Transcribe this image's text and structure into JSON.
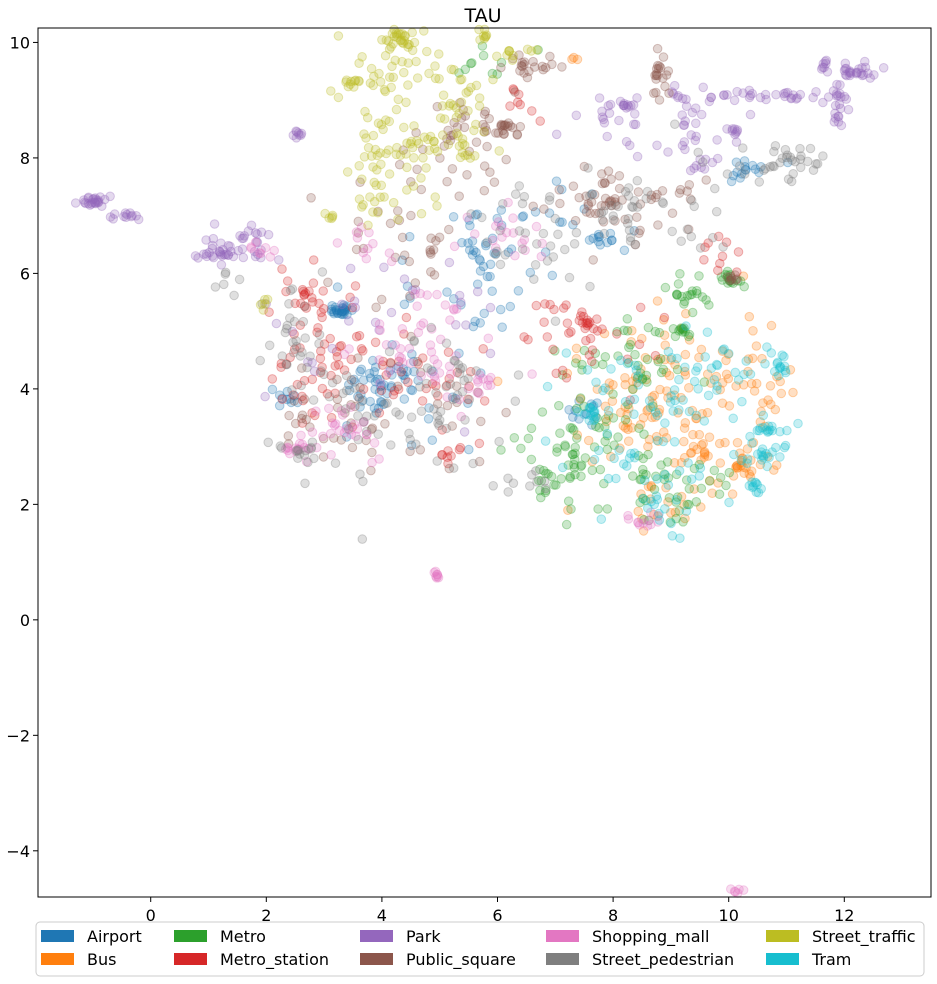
{
  "chart_data": {
    "type": "scatter",
    "title": "TAU",
    "xlabel": "",
    "ylabel": "",
    "xlim": [
      -1.95,
      13.5
    ],
    "ylim": [
      -4.8,
      10.25
    ],
    "xticks": [
      0,
      2,
      4,
      6,
      8,
      10,
      12
    ],
    "yticks": [
      -4,
      -2,
      0,
      2,
      4,
      6,
      8,
      10
    ],
    "xtick_labels": [
      "0",
      "2",
      "4",
      "6",
      "8",
      "10",
      "12"
    ],
    "ytick_labels": [
      "−4",
      "−2",
      "0",
      "2",
      "4",
      "6",
      "8",
      "10"
    ],
    "grid": false,
    "legend_position": "bottom",
    "marker_alpha": 0.25,
    "series": [
      {
        "name": "Airport",
        "color": "#1f77b4",
        "clusters": [
          {
            "cx": 3.3,
            "cy": 5.35,
            "sx": 0.08,
            "sy": 0.07,
            "n": 25
          },
          {
            "cx": 3.9,
            "cy": 3.9,
            "sx": 0.45,
            "sy": 0.35,
            "n": 40
          },
          {
            "cx": 5.8,
            "cy": 6.0,
            "sx": 0.35,
            "sy": 0.5,
            "n": 30
          },
          {
            "cx": 6.8,
            "cy": 6.8,
            "sx": 0.6,
            "sy": 0.4,
            "n": 25
          },
          {
            "cx": 7.8,
            "cy": 6.6,
            "sx": 0.15,
            "sy": 0.08,
            "n": 10
          },
          {
            "cx": 10.5,
            "cy": 7.8,
            "sx": 0.25,
            "sy": 0.1,
            "n": 15
          },
          {
            "cx": 4.5,
            "cy": 4.5,
            "sx": 0.9,
            "sy": 0.8,
            "n": 35
          },
          {
            "cx": 2.4,
            "cy": 3.8,
            "sx": 0.1,
            "sy": 0.1,
            "n": 10
          },
          {
            "cx": 7.5,
            "cy": 3.6,
            "sx": 0.15,
            "sy": 0.12,
            "n": 12
          }
        ]
      },
      {
        "name": "Bus",
        "color": "#ff7f0e",
        "clusters": [
          {
            "cx": 8.4,
            "cy": 3.4,
            "sx": 0.6,
            "sy": 0.5,
            "n": 60
          },
          {
            "cx": 9.8,
            "cy": 3.1,
            "sx": 0.5,
            "sy": 0.5,
            "n": 50
          },
          {
            "cx": 10.2,
            "cy": 2.7,
            "sx": 0.1,
            "sy": 0.15,
            "n": 15
          },
          {
            "cx": 8.9,
            "cy": 4.7,
            "sx": 0.4,
            "sy": 0.4,
            "n": 30
          },
          {
            "cx": 10.4,
            "cy": 4.3,
            "sx": 0.4,
            "sy": 0.5,
            "n": 25
          },
          {
            "cx": 8.9,
            "cy": 2.0,
            "sx": 0.3,
            "sy": 0.3,
            "n": 20
          },
          {
            "cx": 7.3,
            "cy": 9.7,
            "sx": 0.05,
            "sy": 0.03,
            "n": 3
          }
        ]
      },
      {
        "name": "Metro",
        "color": "#2ca02c",
        "clusters": [
          {
            "cx": 7.6,
            "cy": 2.9,
            "sx": 0.6,
            "sy": 0.5,
            "n": 60
          },
          {
            "cx": 9.0,
            "cy": 2.3,
            "sx": 0.5,
            "sy": 0.35,
            "n": 40
          },
          {
            "cx": 10.0,
            "cy": 5.9,
            "sx": 0.1,
            "sy": 0.07,
            "n": 15
          },
          {
            "cx": 9.2,
            "cy": 5.0,
            "sx": 0.1,
            "sy": 0.06,
            "n": 12
          },
          {
            "cx": 8.3,
            "cy": 4.5,
            "sx": 0.6,
            "sy": 0.4,
            "n": 40
          },
          {
            "cx": 9.2,
            "cy": 5.7,
            "sx": 0.3,
            "sy": 0.2,
            "n": 20
          },
          {
            "cx": 6.9,
            "cy": 2.4,
            "sx": 0.2,
            "sy": 0.2,
            "n": 15
          },
          {
            "cx": 6.0,
            "cy": 9.6,
            "sx": 0.3,
            "sy": 0.2,
            "n": 10
          }
        ]
      },
      {
        "name": "Metro_station",
        "color": "#d62728",
        "clusters": [
          {
            "cx": 2.6,
            "cy": 5.6,
            "sx": 0.3,
            "sy": 0.2,
            "n": 25
          },
          {
            "cx": 2.7,
            "cy": 4.3,
            "sx": 0.4,
            "sy": 0.4,
            "n": 30
          },
          {
            "cx": 3.6,
            "cy": 4.5,
            "sx": 0.5,
            "sy": 0.4,
            "n": 30
          },
          {
            "cx": 7.5,
            "cy": 5.15,
            "sx": 0.1,
            "sy": 0.08,
            "n": 15
          },
          {
            "cx": 7.5,
            "cy": 4.8,
            "sx": 0.6,
            "sy": 0.4,
            "n": 30
          },
          {
            "cx": 5.0,
            "cy": 3.9,
            "sx": 0.5,
            "sy": 0.4,
            "n": 20
          },
          {
            "cx": 9.8,
            "cy": 6.2,
            "sx": 0.3,
            "sy": 0.2,
            "n": 10
          },
          {
            "cx": 6.4,
            "cy": 9.0,
            "sx": 0.2,
            "sy": 0.2,
            "n": 8
          },
          {
            "cx": 5.2,
            "cy": 2.9,
            "sx": 0.15,
            "sy": 0.1,
            "n": 8
          }
        ]
      },
      {
        "name": "Park",
        "color": "#9467bd",
        "clusters": [
          {
            "cx": -1.0,
            "cy": 7.25,
            "sx": 0.12,
            "sy": 0.05,
            "n": 25
          },
          {
            "cx": -0.45,
            "cy": 7.0,
            "sx": 0.1,
            "sy": 0.04,
            "n": 12
          },
          {
            "cx": 1.3,
            "cy": 6.35,
            "sx": 0.2,
            "sy": 0.05,
            "n": 20
          },
          {
            "cx": 1.6,
            "cy": 6.5,
            "sx": 0.35,
            "sy": 0.2,
            "n": 30
          },
          {
            "cx": 2.6,
            "cy": 8.4,
            "sx": 0.05,
            "sy": 0.04,
            "n": 8
          },
          {
            "cx": 9.0,
            "cy": 8.6,
            "sx": 0.7,
            "sy": 0.3,
            "n": 40
          },
          {
            "cx": 10.7,
            "cy": 9.1,
            "sx": 0.6,
            "sy": 0.06,
            "n": 30
          },
          {
            "cx": 12.3,
            "cy": 9.5,
            "sx": 0.2,
            "sy": 0.06,
            "n": 25
          },
          {
            "cx": 11.9,
            "cy": 9.0,
            "sx": 0.1,
            "sy": 0.3,
            "n": 20
          },
          {
            "cx": 11.7,
            "cy": 9.6,
            "sx": 0.05,
            "sy": 0.05,
            "n": 8
          },
          {
            "cx": 8.2,
            "cy": 8.9,
            "sx": 0.1,
            "sy": 0.07,
            "n": 12
          },
          {
            "cx": 10.1,
            "cy": 8.5,
            "sx": 0.06,
            "sy": 0.05,
            "n": 8
          },
          {
            "cx": 9.5,
            "cy": 7.9,
            "sx": 0.1,
            "sy": 0.1,
            "n": 8
          },
          {
            "cx": 9.1,
            "cy": 9.1,
            "sx": 0.08,
            "sy": 0.08,
            "n": 8
          },
          {
            "cx": 4.0,
            "cy": 5.2,
            "sx": 1.0,
            "sy": 0.9,
            "n": 30
          }
        ]
      },
      {
        "name": "Public_square",
        "color": "#8c564b",
        "clusters": [
          {
            "cx": 6.1,
            "cy": 8.5,
            "sx": 0.1,
            "sy": 0.08,
            "n": 15
          },
          {
            "cx": 6.6,
            "cy": 9.6,
            "sx": 0.3,
            "sy": 0.08,
            "n": 20
          },
          {
            "cx": 5.7,
            "cy": 8.5,
            "sx": 0.4,
            "sy": 0.3,
            "n": 25
          },
          {
            "cx": 7.6,
            "cy": 7.3,
            "sx": 0.4,
            "sy": 0.2,
            "n": 30
          },
          {
            "cx": 8.8,
            "cy": 9.5,
            "sx": 0.08,
            "sy": 0.3,
            "n": 20
          },
          {
            "cx": 8.4,
            "cy": 7.2,
            "sx": 0.6,
            "sy": 0.4,
            "n": 30
          },
          {
            "cx": 4.2,
            "cy": 6.5,
            "sx": 0.6,
            "sy": 0.5,
            "n": 30
          },
          {
            "cx": 4.5,
            "cy": 3.9,
            "sx": 0.8,
            "sy": 0.6,
            "n": 30
          },
          {
            "cx": 5.0,
            "cy": 7.9,
            "sx": 0.5,
            "sy": 0.3,
            "n": 20
          },
          {
            "cx": 3.0,
            "cy": 3.5,
            "sx": 0.5,
            "sy": 0.4,
            "n": 20
          },
          {
            "cx": 10.1,
            "cy": 5.9,
            "sx": 0.08,
            "sy": 0.06,
            "n": 8
          }
        ]
      },
      {
        "name": "Shopping_mall",
        "color": "#e377c2",
        "clusters": [
          {
            "cx": 4.95,
            "cy": 0.8,
            "sx": 0.04,
            "sy": 0.05,
            "n": 8
          },
          {
            "cx": 10.15,
            "cy": -4.7,
            "sx": 0.05,
            "sy": 0.03,
            "n": 6
          },
          {
            "cx": 4.6,
            "cy": 4.8,
            "sx": 0.6,
            "sy": 0.6,
            "n": 50
          },
          {
            "cx": 3.4,
            "cy": 3.3,
            "sx": 0.35,
            "sy": 0.3,
            "n": 30
          },
          {
            "cx": 2.5,
            "cy": 2.95,
            "sx": 0.15,
            "sy": 0.06,
            "n": 15
          },
          {
            "cx": 6.1,
            "cy": 6.6,
            "sx": 0.4,
            "sy": 0.3,
            "n": 20
          },
          {
            "cx": 5.7,
            "cy": 4.1,
            "sx": 0.1,
            "sy": 0.1,
            "n": 10
          },
          {
            "cx": 3.8,
            "cy": 6.5,
            "sx": 0.3,
            "sy": 0.2,
            "n": 10
          },
          {
            "cx": 8.6,
            "cy": 1.7,
            "sx": 0.2,
            "sy": 0.08,
            "n": 12
          },
          {
            "cx": 1.9,
            "cy": 6.4,
            "sx": 0.2,
            "sy": 0.1,
            "n": 8
          }
        ]
      },
      {
        "name": "Street_pedestrian",
        "color": "#7f7f7f",
        "clusters": [
          {
            "cx": 11.0,
            "cy": 7.95,
            "sx": 0.35,
            "sy": 0.2,
            "n": 30
          },
          {
            "cx": 8.5,
            "cy": 7.1,
            "sx": 0.9,
            "sy": 0.5,
            "n": 50
          },
          {
            "cx": 6.5,
            "cy": 6.7,
            "sx": 0.5,
            "sy": 0.6,
            "n": 30
          },
          {
            "cx": 4.0,
            "cy": 3.4,
            "sx": 0.9,
            "sy": 0.5,
            "n": 50
          },
          {
            "cx": 2.5,
            "cy": 4.8,
            "sx": 0.3,
            "sy": 0.6,
            "n": 30
          },
          {
            "cx": 2.6,
            "cy": 2.9,
            "sx": 0.15,
            "sy": 0.1,
            "n": 12
          },
          {
            "cx": 5.3,
            "cy": 4.3,
            "sx": 0.5,
            "sy": 0.5,
            "n": 25
          },
          {
            "cx": 6.5,
            "cy": 2.5,
            "sx": 0.4,
            "sy": 0.1,
            "n": 10
          },
          {
            "cx": 1.4,
            "cy": 5.8,
            "sx": 0.1,
            "sy": 0.15,
            "n": 6
          }
        ]
      },
      {
        "name": "Street_traffic",
        "color": "#bcbd22",
        "clusters": [
          {
            "cx": 4.3,
            "cy": 10.1,
            "sx": 0.12,
            "sy": 0.1,
            "n": 25
          },
          {
            "cx": 4.6,
            "cy": 9.4,
            "sx": 0.5,
            "sy": 0.4,
            "n": 40
          },
          {
            "cx": 4.3,
            "cy": 8.3,
            "sx": 0.5,
            "sy": 0.5,
            "n": 50
          },
          {
            "cx": 3.8,
            "cy": 7.6,
            "sx": 0.2,
            "sy": 0.4,
            "n": 25
          },
          {
            "cx": 5.3,
            "cy": 9.0,
            "sx": 0.3,
            "sy": 0.3,
            "n": 20
          },
          {
            "cx": 5.8,
            "cy": 10.1,
            "sx": 0.05,
            "sy": 0.08,
            "n": 8
          },
          {
            "cx": 3.6,
            "cy": 9.3,
            "sx": 0.1,
            "sy": 0.05,
            "n": 10
          },
          {
            "cx": 6.3,
            "cy": 9.8,
            "sx": 0.2,
            "sy": 0.05,
            "n": 10
          },
          {
            "cx": 5.4,
            "cy": 8.2,
            "sx": 0.3,
            "sy": 0.2,
            "n": 15
          },
          {
            "cx": 1.95,
            "cy": 5.5,
            "sx": 0.05,
            "sy": 0.05,
            "n": 5
          },
          {
            "cx": 3.1,
            "cy": 7.0,
            "sx": 0.1,
            "sy": 0.05,
            "n": 5
          }
        ]
      },
      {
        "name": "Tram",
        "color": "#17becf",
        "clusters": [
          {
            "cx": 10.9,
            "cy": 4.4,
            "sx": 0.05,
            "sy": 0.1,
            "n": 12
          },
          {
            "cx": 10.7,
            "cy": 3.3,
            "sx": 0.15,
            "sy": 0.1,
            "n": 15
          },
          {
            "cx": 10.6,
            "cy": 2.85,
            "sx": 0.2,
            "sy": 0.1,
            "n": 20
          },
          {
            "cx": 10.4,
            "cy": 2.3,
            "sx": 0.1,
            "sy": 0.05,
            "n": 10
          },
          {
            "cx": 8.4,
            "cy": 3.5,
            "sx": 0.7,
            "sy": 0.5,
            "n": 40
          },
          {
            "cx": 9.6,
            "cy": 4.3,
            "sx": 0.6,
            "sy": 0.4,
            "n": 40
          },
          {
            "cx": 7.6,
            "cy": 3.6,
            "sx": 0.1,
            "sy": 0.08,
            "n": 12
          },
          {
            "cx": 8.8,
            "cy": 2.2,
            "sx": 0.6,
            "sy": 0.4,
            "n": 30
          }
        ]
      }
    ]
  }
}
